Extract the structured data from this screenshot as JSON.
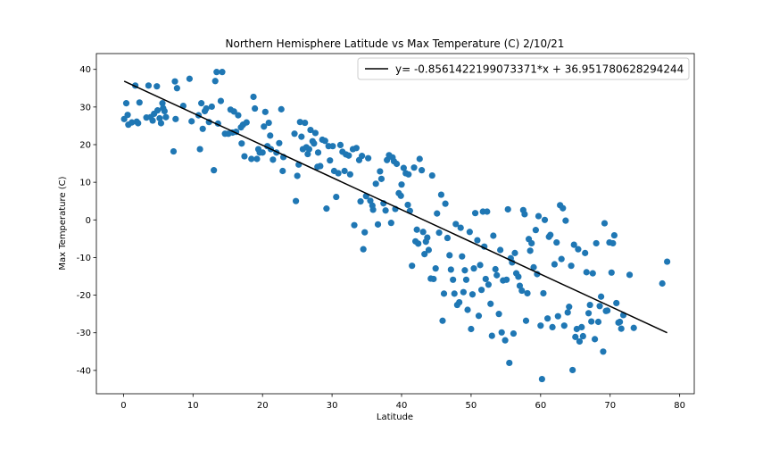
{
  "chart_data": {
    "type": "scatter",
    "title": "Northern Hemisphere Latitude vs Max Temperature (C) 2/10/21",
    "xlabel": "Latitude",
    "ylabel": "Max Temperature (C)",
    "xlim": [
      -3.9,
      82.1
    ],
    "ylim": [
      -46.2,
      44.2
    ],
    "xticks": [
      0,
      10,
      20,
      30,
      40,
      50,
      60,
      70,
      80
    ],
    "yticks": [
      -40,
      -30,
      -20,
      -10,
      0,
      10,
      20,
      30,
      40
    ],
    "grid": false,
    "legend_position": "top-right",
    "colors": {
      "points": "#1f77b4",
      "line": "#000000"
    },
    "regression": {
      "label": "y= -0.8561422199073371*x + 36.951780628294244",
      "slope": -0.8561422199073371,
      "intercept": 36.951780628294244,
      "x_range": [
        0.1,
        78.2
      ]
    },
    "points": [
      [
        0.1,
        26.8
      ],
      [
        0.4,
        31.0
      ],
      [
        0.6,
        27.9
      ],
      [
        0.7,
        25.3
      ],
      [
        1.2,
        25.9
      ],
      [
        1.7,
        35.7
      ],
      [
        1.9,
        26.1
      ],
      [
        2.1,
        25.7
      ],
      [
        2.3,
        31.2
      ],
      [
        3.3,
        27.2
      ],
      [
        3.6,
        35.7
      ],
      [
        3.9,
        27.3
      ],
      [
        4.2,
        26.4
      ],
      [
        4.4,
        28.2
      ],
      [
        4.8,
        35.5
      ],
      [
        4.9,
        29.1
      ],
      [
        5.2,
        27.0
      ],
      [
        5.4,
        25.7
      ],
      [
        5.6,
        31.0
      ],
      [
        5.7,
        29.7
      ],
      [
        5.9,
        28.9
      ],
      [
        6.1,
        27.3
      ],
      [
        7.2,
        18.2
      ],
      [
        7.4,
        36.8
      ],
      [
        7.5,
        26.8
      ],
      [
        7.7,
        35.0
      ],
      [
        8.6,
        30.3
      ],
      [
        9.5,
        37.5
      ],
      [
        9.8,
        26.2
      ],
      [
        10.8,
        27.8
      ],
      [
        11.0,
        18.8
      ],
      [
        11.2,
        31.0
      ],
      [
        11.4,
        24.2
      ],
      [
        11.7,
        28.9
      ],
      [
        11.9,
        29.6
      ],
      [
        12.3,
        26.0
      ],
      [
        12.7,
        30.1
      ],
      [
        13.0,
        13.2
      ],
      [
        13.2,
        36.9
      ],
      [
        13.4,
        39.3
      ],
      [
        13.6,
        25.6
      ],
      [
        14.0,
        31.6
      ],
      [
        14.2,
        39.3
      ],
      [
        14.6,
        22.9
      ],
      [
        15.1,
        22.9
      ],
      [
        15.4,
        29.3
      ],
      [
        15.7,
        23.2
      ],
      [
        15.9,
        28.8
      ],
      [
        16.2,
        23.4
      ],
      [
        16.5,
        27.8
      ],
      [
        16.9,
        24.6
      ],
      [
        17.0,
        20.3
      ],
      [
        17.2,
        25.3
      ],
      [
        17.4,
        16.9
      ],
      [
        17.7,
        25.9
      ],
      [
        18.4,
        16.2
      ],
      [
        18.7,
        32.7
      ],
      [
        18.9,
        29.6
      ],
      [
        19.2,
        16.2
      ],
      [
        19.4,
        18.8
      ],
      [
        19.6,
        17.9
      ],
      [
        20.0,
        17.9
      ],
      [
        20.2,
        24.8
      ],
      [
        20.4,
        28.7
      ],
      [
        20.7,
        19.6
      ],
      [
        20.9,
        25.8
      ],
      [
        21.1,
        22.4
      ],
      [
        21.2,
        18.8
      ],
      [
        21.5,
        16.0
      ],
      [
        22.0,
        17.9
      ],
      [
        22.4,
        20.4
      ],
      [
        22.7,
        29.4
      ],
      [
        22.9,
        13.0
      ],
      [
        23.0,
        16.7
      ],
      [
        24.6,
        22.9
      ],
      [
        24.8,
        5.0
      ],
      [
        25.0,
        11.7
      ],
      [
        25.2,
        14.7
      ],
      [
        25.4,
        26.0
      ],
      [
        25.6,
        22.1
      ],
      [
        25.8,
        18.8
      ],
      [
        26.1,
        25.8
      ],
      [
        26.3,
        19.3
      ],
      [
        26.5,
        17.5
      ],
      [
        26.7,
        18.8
      ],
      [
        26.9,
        23.9
      ],
      [
        27.2,
        20.9
      ],
      [
        27.4,
        20.3
      ],
      [
        27.6,
        23.1
      ],
      [
        27.9,
        14.1
      ],
      [
        28.0,
        17.9
      ],
      [
        28.3,
        14.3
      ],
      [
        28.6,
        21.3
      ],
      [
        29.0,
        21.0
      ],
      [
        29.2,
        3.0
      ],
      [
        29.5,
        19.6
      ],
      [
        29.7,
        15.8
      ],
      [
        30.1,
        19.6
      ],
      [
        30.3,
        13.0
      ],
      [
        30.6,
        6.1
      ],
      [
        30.9,
        12.4
      ],
      [
        31.2,
        19.9
      ],
      [
        31.5,
        18.1
      ],
      [
        31.8,
        13.0
      ],
      [
        32.0,
        17.4
      ],
      [
        32.4,
        17.1
      ],
      [
        32.6,
        12.1
      ],
      [
        33.0,
        18.8
      ],
      [
        33.2,
        -1.4
      ],
      [
        33.5,
        19.1
      ],
      [
        33.9,
        15.9
      ],
      [
        34.1,
        4.9
      ],
      [
        34.3,
        17.0
      ],
      [
        34.5,
        -7.8
      ],
      [
        34.7,
        -3.3
      ],
      [
        34.9,
        6.3
      ],
      [
        35.2,
        16.4
      ],
      [
        35.5,
        5.1
      ],
      [
        35.8,
        3.8
      ],
      [
        35.9,
        2.7
      ],
      [
        36.3,
        9.6
      ],
      [
        36.6,
        -1.2
      ],
      [
        36.9,
        12.9
      ],
      [
        37.1,
        10.9
      ],
      [
        37.4,
        4.4
      ],
      [
        37.7,
        2.5
      ],
      [
        37.9,
        15.9
      ],
      [
        38.2,
        17.2
      ],
      [
        38.5,
        -0.8
      ],
      [
        38.7,
        16.6
      ],
      [
        38.9,
        15.6
      ],
      [
        39.1,
        2.9
      ],
      [
        39.3,
        14.9
      ],
      [
        39.6,
        7.1
      ],
      [
        39.9,
        6.4
      ],
      [
        40.0,
        9.4
      ],
      [
        40.3,
        13.8
      ],
      [
        40.6,
        12.4
      ],
      [
        40.9,
        4.0
      ],
      [
        41.0,
        12.1
      ],
      [
        41.2,
        2.4
      ],
      [
        41.5,
        -12.2
      ],
      [
        41.8,
        13.9
      ],
      [
        42.0,
        -5.7
      ],
      [
        42.2,
        -2.6
      ],
      [
        42.4,
        -6.3
      ],
      [
        42.6,
        16.2
      ],
      [
        42.9,
        13.2
      ],
      [
        43.1,
        -3.2
      ],
      [
        43.3,
        -9.1
      ],
      [
        43.5,
        -5.8
      ],
      [
        43.7,
        -4.7
      ],
      [
        43.9,
        -8.0
      ],
      [
        44.2,
        -15.6
      ],
      [
        44.4,
        11.8
      ],
      [
        44.6,
        -15.7
      ],
      [
        44.9,
        -12.9
      ],
      [
        45.1,
        1.7
      ],
      [
        45.4,
        -3.4
      ],
      [
        45.7,
        6.7
      ],
      [
        45.9,
        -26.8
      ],
      [
        46.1,
        -19.6
      ],
      [
        46.3,
        4.3
      ],
      [
        46.6,
        -4.8
      ],
      [
        46.9,
        -9.4
      ],
      [
        47.1,
        -13.2
      ],
      [
        47.4,
        -15.9
      ],
      [
        47.6,
        -19.6
      ],
      [
        47.8,
        -1.1
      ],
      [
        48.0,
        -22.6
      ],
      [
        48.3,
        -21.9
      ],
      [
        48.5,
        -2.1
      ],
      [
        48.7,
        -9.7
      ],
      [
        48.9,
        -19.2
      ],
      [
        49.1,
        -13.4
      ],
      [
        49.3,
        -15.9
      ],
      [
        49.5,
        -23.9
      ],
      [
        49.8,
        -3.2
      ],
      [
        50.0,
        -29.0
      ],
      [
        50.2,
        -19.8
      ],
      [
        50.4,
        -12.9
      ],
      [
        50.6,
        1.8
      ],
      [
        50.9,
        -5.4
      ],
      [
        51.1,
        -25.5
      ],
      [
        51.3,
        -12.0
      ],
      [
        51.5,
        -18.6
      ],
      [
        51.7,
        2.2
      ],
      [
        51.9,
        -7.1
      ],
      [
        52.1,
        -15.7
      ],
      [
        52.3,
        2.2
      ],
      [
        52.5,
        -17.2
      ],
      [
        52.8,
        -22.3
      ],
      [
        53.0,
        -30.8
      ],
      [
        53.2,
        -4.2
      ],
      [
        53.5,
        -13.1
      ],
      [
        53.7,
        -14.7
      ],
      [
        54.0,
        -25.0
      ],
      [
        54.2,
        -8.0
      ],
      [
        54.4,
        -29.9
      ],
      [
        54.6,
        -16.1
      ],
      [
        54.9,
        -32.0
      ],
      [
        55.1,
        -15.9
      ],
      [
        55.3,
        2.8
      ],
      [
        55.5,
        -38.0
      ],
      [
        55.7,
        -10.2
      ],
      [
        55.9,
        -11.3
      ],
      [
        56.1,
        -30.2
      ],
      [
        56.3,
        -8.8
      ],
      [
        56.5,
        -14.2
      ],
      [
        56.8,
        -15.1
      ],
      [
        57.0,
        -17.5
      ],
      [
        57.3,
        -18.8
      ],
      [
        57.5,
        2.6
      ],
      [
        57.7,
        1.5
      ],
      [
        57.9,
        -26.8
      ],
      [
        58.1,
        -19.5
      ],
      [
        58.3,
        -5.1
      ],
      [
        58.5,
        -8.2
      ],
      [
        58.7,
        -6.2
      ],
      [
        59.0,
        -12.6
      ],
      [
        59.3,
        -2.7
      ],
      [
        59.5,
        -14.4
      ],
      [
        59.7,
        1.0
      ],
      [
        60.0,
        -28.1
      ],
      [
        60.2,
        -42.3
      ],
      [
        60.4,
        -19.5
      ],
      [
        60.6,
        0.0
      ],
      [
        61.0,
        -26.2
      ],
      [
        61.2,
        -4.5
      ],
      [
        61.4,
        -4.0
      ],
      [
        61.7,
        -28.5
      ],
      [
        62.0,
        -11.8
      ],
      [
        62.3,
        -6.0
      ],
      [
        62.5,
        -25.6
      ],
      [
        62.8,
        3.9
      ],
      [
        63.0,
        -10.4
      ],
      [
        63.2,
        3.1
      ],
      [
        63.4,
        -28.1
      ],
      [
        63.6,
        -0.2
      ],
      [
        63.9,
        -24.6
      ],
      [
        64.1,
        -23.1
      ],
      [
        64.4,
        -12.2
      ],
      [
        64.6,
        -39.9
      ],
      [
        64.8,
        -6.6
      ],
      [
        65.0,
        -31.1
      ],
      [
        65.2,
        -29.0
      ],
      [
        65.4,
        -7.8
      ],
      [
        65.6,
        -32.3
      ],
      [
        65.9,
        -28.5
      ],
      [
        66.1,
        -30.9
      ],
      [
        66.4,
        -8.8
      ],
      [
        66.6,
        -13.9
      ],
      [
        66.9,
        -24.8
      ],
      [
        67.1,
        -22.6
      ],
      [
        67.3,
        -27.0
      ],
      [
        67.5,
        -14.2
      ],
      [
        67.8,
        -31.7
      ],
      [
        68.0,
        -6.2
      ],
      [
        68.3,
        -27.1
      ],
      [
        68.5,
        -22.9
      ],
      [
        68.7,
        -20.4
      ],
      [
        69.0,
        -35.0
      ],
      [
        69.2,
        -0.9
      ],
      [
        69.4,
        -24.2
      ],
      [
        69.6,
        -24.1
      ],
      [
        69.9,
        -6.0
      ],
      [
        70.2,
        -14.0
      ],
      [
        70.4,
        -6.2
      ],
      [
        70.6,
        -4.1
      ],
      [
        70.9,
        -22.1
      ],
      [
        71.2,
        -27.3
      ],
      [
        71.4,
        -27.1
      ],
      [
        71.6,
        -28.9
      ],
      [
        71.9,
        -25.3
      ],
      [
        72.8,
        -14.6
      ],
      [
        73.4,
        -28.7
      ],
      [
        77.5,
        -16.9
      ],
      [
        78.2,
        -11.1
      ]
    ]
  }
}
